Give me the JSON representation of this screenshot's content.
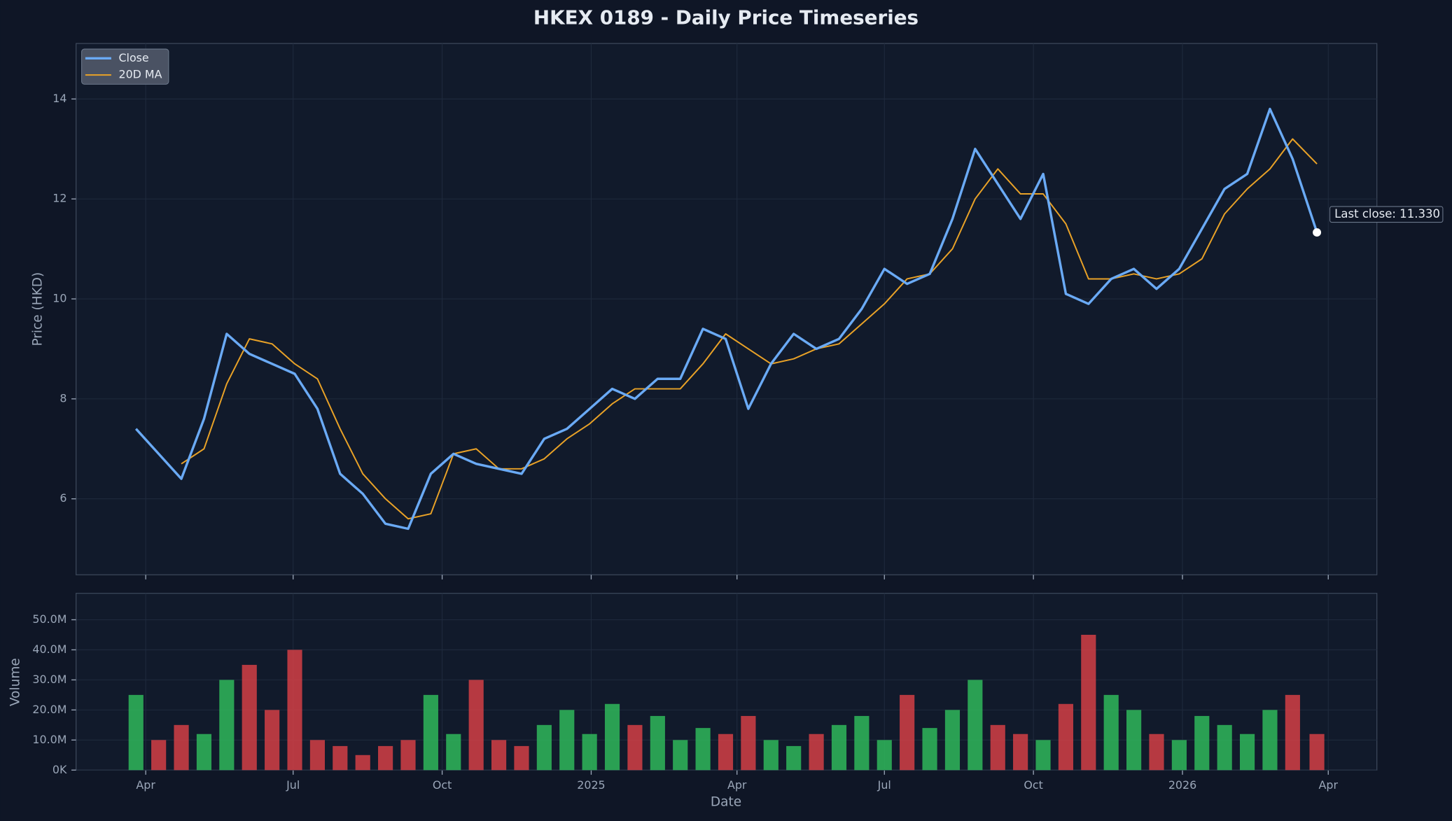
{
  "chart_data": {
    "type": "line",
    "title": "HKEX 0189 - Daily Price Timeseries",
    "xlabel": "Date",
    "ylabel": "Price (HKD)",
    "xlim": [
      "2024-02-18",
      "2026-05-01"
    ],
    "xticks": [
      {
        "value": "2024-04-01",
        "label": "Apr"
      },
      {
        "value": "2024-07-01",
        "label": "Jul"
      },
      {
        "value": "2024-10-01",
        "label": "Oct"
      },
      {
        "value": "2025-01-01",
        "label": "2025"
      },
      {
        "value": "2025-04-01",
        "label": "Apr"
      },
      {
        "value": "2025-07-01",
        "label": "Jul"
      },
      {
        "value": "2025-10-01",
        "label": "Oct"
      },
      {
        "value": "2026-01-01",
        "label": "2026"
      },
      {
        "value": "2026-04-01",
        "label": "Apr"
      }
    ],
    "ylim": [
      4.48,
      15.11
    ],
    "yticks": [
      6,
      8,
      10,
      12,
      14
    ],
    "grid": true,
    "legend": "upper left",
    "x": [
      "2024-03-26",
      "2024-04-09",
      "2024-04-23",
      "2024-05-07",
      "2024-05-21",
      "2024-06-04",
      "2024-06-18",
      "2024-07-02",
      "2024-07-16",
      "2024-07-30",
      "2024-08-13",
      "2024-08-27",
      "2024-09-10",
      "2024-09-24",
      "2024-10-08",
      "2024-10-22",
      "2024-11-05",
      "2024-11-19",
      "2024-12-03",
      "2024-12-17",
      "2024-12-31",
      "2025-01-14",
      "2025-01-28",
      "2025-02-11",
      "2025-02-25",
      "2025-03-11",
      "2025-03-25",
      "2025-04-08",
      "2025-04-22",
      "2025-05-06",
      "2025-05-20",
      "2025-06-03",
      "2025-06-17",
      "2025-07-01",
      "2025-07-15",
      "2025-07-29",
      "2025-08-12",
      "2025-08-26",
      "2025-09-09",
      "2025-09-23",
      "2025-10-07",
      "2025-10-21",
      "2025-11-04",
      "2025-11-18",
      "2025-12-02",
      "2025-12-16",
      "2025-12-30",
      "2026-01-13",
      "2026-01-27",
      "2026-02-10",
      "2026-02-24",
      "2026-03-10",
      "2026-03-25"
    ],
    "series": [
      {
        "name": "Close",
        "color": "#6aaaf5",
        "values": [
          7.4,
          6.9,
          6.4,
          7.6,
          9.3,
          8.9,
          8.7,
          8.5,
          7.8,
          6.5,
          6.1,
          5.5,
          5.4,
          6.5,
          6.9,
          6.7,
          6.6,
          6.5,
          7.2,
          7.4,
          7.8,
          8.2,
          8.0,
          8.4,
          8.4,
          9.4,
          9.2,
          7.8,
          8.7,
          9.3,
          9.0,
          9.2,
          9.8,
          10.6,
          10.3,
          10.5,
          11.6,
          13.0,
          12.3,
          11.6,
          12.5,
          10.1,
          9.9,
          10.4,
          10.6,
          10.2,
          10.6,
          11.4,
          12.2,
          12.5,
          13.8,
          12.8,
          11.33
        ]
      },
      {
        "name": "20D MA",
        "color": "#e9a227",
        "values": [
          null,
          null,
          6.7,
          7.0,
          8.3,
          9.2,
          9.1,
          8.7,
          8.4,
          7.4,
          6.5,
          6.0,
          5.6,
          5.7,
          6.9,
          7.0,
          6.6,
          6.6,
          6.8,
          7.2,
          7.5,
          7.9,
          8.2,
          8.2,
          8.2,
          8.7,
          9.3,
          9.0,
          8.7,
          8.8,
          9.0,
          9.1,
          9.5,
          9.9,
          10.4,
          10.5,
          11.0,
          12.0,
          12.6,
          12.1,
          12.1,
          11.5,
          10.4,
          10.4,
          10.5,
          10.4,
          10.5,
          10.8,
          11.7,
          12.2,
          12.6,
          13.2,
          12.7
        ]
      }
    ],
    "annotation": "Last close: 11.330",
    "volume": {
      "ylabel": "Volume",
      "up_color": "#2fb85a",
      "down_color": "#d43f45",
      "ylim": [
        0,
        58800000
      ],
      "yticks": [
        {
          "value": 0,
          "label": "0K"
        },
        {
          "value": 10000000,
          "label": "10.0M"
        },
        {
          "value": 20000000,
          "label": "20.0M"
        },
        {
          "value": 30000000,
          "label": "30.0M"
        },
        {
          "value": 40000000,
          "label": "40.0M"
        },
        {
          "value": 50000000,
          "label": "50.0M"
        }
      ],
      "values": [
        25000000,
        10000000,
        15000000,
        12000000,
        30000000,
        35000000,
        20000000,
        40000000,
        10000000,
        8000000,
        5000000,
        8000000,
        10000000,
        25000000,
        12000000,
        30000000,
        10000000,
        8000000,
        15000000,
        20000000,
        12000000,
        22000000,
        15000000,
        18000000,
        10000000,
        14000000,
        12000000,
        18000000,
        10000000,
        8000000,
        12000000,
        15000000,
        18000000,
        10000000,
        25000000,
        14000000,
        20000000,
        30000000,
        15000000,
        12000000,
        10000000,
        22000000,
        45000000,
        25000000,
        20000000,
        12000000,
        10000000,
        18000000,
        15000000,
        12000000,
        20000000,
        25000000,
        12000000
      ]
    }
  }
}
